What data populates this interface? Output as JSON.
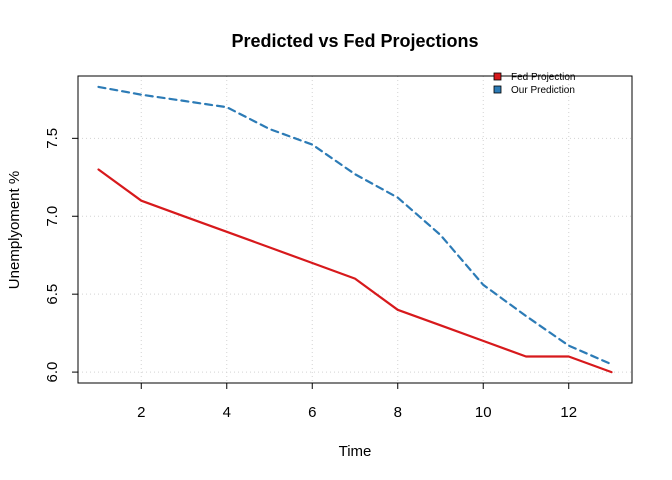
{
  "chart_data": {
    "type": "line",
    "title": "Predicted vs Fed Projections",
    "xlabel": "Time",
    "ylabel": "Unemplyoment %",
    "x": [
      1,
      2,
      3,
      4,
      5,
      6,
      7,
      8,
      9,
      10,
      11,
      12,
      13
    ],
    "xlim": [
      0.52,
      13.48
    ],
    "ylim": [
      5.93,
      7.9
    ],
    "xticks": [
      2,
      4,
      6,
      8,
      10,
      12
    ],
    "yticks": [
      6.0,
      6.5,
      7.0,
      7.5
    ],
    "xtick_labels": [
      "2",
      "4",
      "6",
      "8",
      "10",
      "12"
    ],
    "ytick_labels": [
      "6.0",
      "6.5",
      "7.0",
      "7.5"
    ],
    "grid": true,
    "legend_position": "top-right",
    "series": [
      {
        "name": "Fed Projection",
        "color": "#d7191c",
        "style": "solid",
        "values": [
          7.3,
          7.1,
          7.0,
          6.9,
          6.8,
          6.7,
          6.6,
          6.4,
          6.3,
          6.2,
          6.1,
          6.1,
          6.0
        ]
      },
      {
        "name": "Our Prediction",
        "color": "#2c7bb6",
        "style": "dashed",
        "values": [
          7.83,
          7.78,
          7.74,
          7.7,
          7.56,
          7.46,
          7.27,
          7.12,
          6.88,
          6.56,
          6.36,
          6.17,
          6.05
        ]
      }
    ]
  }
}
